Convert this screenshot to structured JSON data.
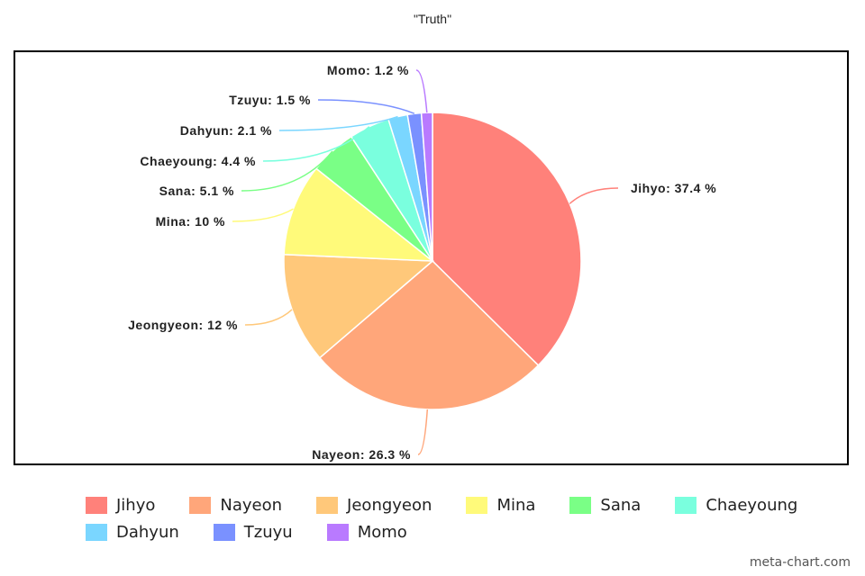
{
  "chart_data": {
    "type": "pie",
    "title": "\"Truth\"",
    "slices": [
      {
        "name": "Jihyo",
        "value": 37.4,
        "label": "Jihyo: 37.4 %",
        "color": "#ff817a"
      },
      {
        "name": "Nayeon",
        "value": 26.3,
        "label": "Nayeon: 26.3 %",
        "color": "#ffa67a"
      },
      {
        "name": "Jeongyeon",
        "value": 12,
        "label": "Jeongyeon: 12 %",
        "color": "#ffc87a"
      },
      {
        "name": "Mina",
        "value": 10,
        "label": "Mina: 10 %",
        "color": "#fffa7a"
      },
      {
        "name": "Sana",
        "value": 5.1,
        "label": "Sana: 5.1 %",
        "color": "#7aff86"
      },
      {
        "name": "Chaeyoung",
        "value": 4.4,
        "label": "Chaeyoung: 4.4 %",
        "color": "#7affde"
      },
      {
        "name": "Dahyun",
        "value": 2.1,
        "label": "Dahyun: 2.1 %",
        "color": "#7ad6ff"
      },
      {
        "name": "Tzuyu",
        "value": 1.5,
        "label": "Tzuyu: 1.5 %",
        "color": "#7a91ff"
      },
      {
        "name": "Momo",
        "value": 1.2,
        "label": "Momo: 1.2 %",
        "color": "#b97aff"
      }
    ],
    "legend": "bottom"
  },
  "watermark": "meta-chart.com"
}
